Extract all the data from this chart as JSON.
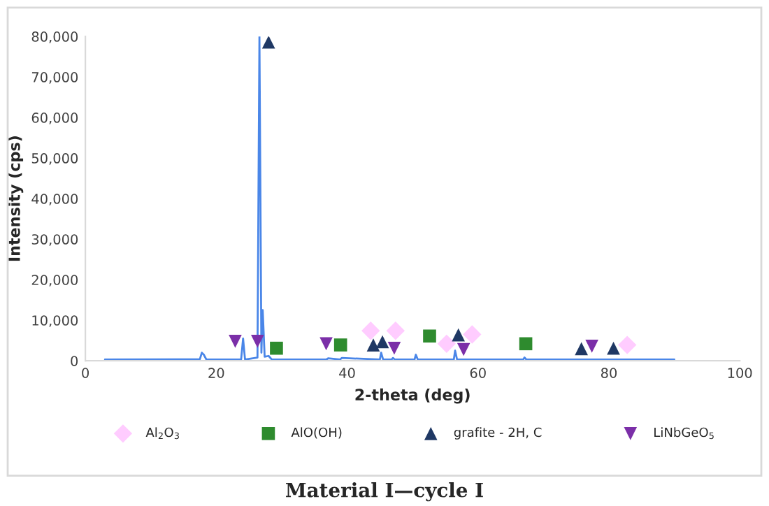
{
  "chart_data": {
    "type": "line",
    "xlabel": "2-theta (deg)",
    "ylabel": "Intensity (cps)",
    "xlim": [
      0,
      100
    ],
    "xticks": [
      0,
      20,
      40,
      60,
      80,
      100
    ],
    "ylim": [
      0,
      80000
    ],
    "yticks": [
      {
        "value": 0,
        "label": "0"
      },
      {
        "value": 10000,
        "label": "10,000"
      },
      {
        "value": 20000,
        "label": "20,000"
      },
      {
        "value": 30000,
        "label": "30,000"
      },
      {
        "value": 40000,
        "label": "40,000"
      },
      {
        "value": 50000,
        "label": "50,000"
      },
      {
        "value": 60000,
        "label": "60,000"
      },
      {
        "value": 70000,
        "label": "70,000"
      },
      {
        "value": 80000,
        "label": "80,000"
      }
    ],
    "grid": false,
    "legend": "bottom",
    "series": [
      {
        "color": "#4a86e8",
        "marker": "none",
        "x": [
          3,
          17.5,
          17.8,
          18.1,
          18.5,
          23.8,
          24.1,
          24.4,
          26.3,
          26.6,
          26.9,
          27.1,
          27.4,
          28,
          28.5,
          36.8,
          37.1,
          38.9,
          39.2,
          45.0,
          45.2,
          45.5,
          46.8,
          47.0,
          47.3,
          50.3,
          50.5,
          50.8,
          56.3,
          56.5,
          56.8,
          66.9,
          67.1,
          67.4,
          90
        ],
        "values": [
          300,
          400,
          2000,
          1500,
          300,
          300,
          5500,
          300,
          800,
          80000,
          2000,
          12500,
          1000,
          1200,
          300,
          300,
          600,
          300,
          700,
          300,
          2000,
          300,
          300,
          700,
          300,
          300,
          1500,
          300,
          300,
          2500,
          300,
          300,
          800,
          300,
          300
        ]
      },
      {
        "type": "scatter",
        "name": "Al$_{2}$O$_{3}$",
        "color": "#ffccff",
        "marker": "diamond",
        "x": [
          43.6,
          47.4,
          55.2,
          59.1,
          82.8
        ],
        "values": [
          7400,
          7400,
          4200,
          6500,
          3900
        ]
      },
      {
        "type": "scatter",
        "name": "AlO(OH)",
        "color": "#2e8b2e",
        "marker": "square",
        "x": [
          29.2,
          39.0,
          52.6,
          67.3
        ],
        "values": [
          3100,
          3900,
          6100,
          4200
        ]
      },
      {
        "type": "scatter",
        "name": "grafite - 2H, C",
        "color": "#1f3864",
        "marker": "triangle",
        "x": [
          28.0,
          44.0,
          45.4,
          57.0,
          75.8,
          80.7
        ],
        "values": [
          78600,
          3900,
          4700,
          6400,
          3000,
          3100
        ]
      },
      {
        "type": "scatter",
        "name": "LiNbGeO$_{5}$",
        "color": "#7b2fa8",
        "marker": "triangle_down",
        "x": [
          22.9,
          26.3,
          36.8,
          47.2,
          57.8,
          77.4
        ],
        "values": [
          4800,
          4800,
          4200,
          3100,
          2800,
          3600
        ]
      }
    ],
    "annotations": [
      "Material I—cycle I"
    ]
  }
}
